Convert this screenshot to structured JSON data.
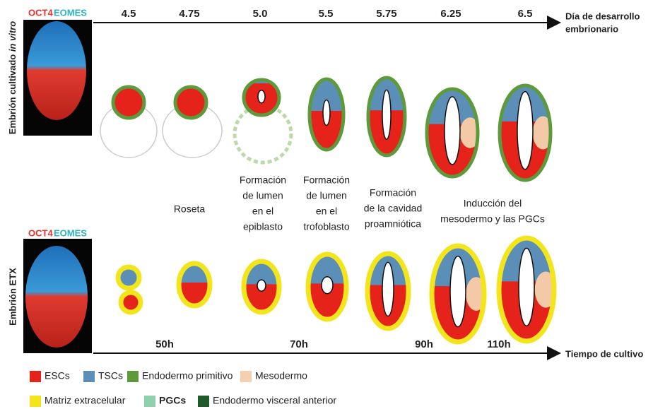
{
  "top_panel": {
    "stain_red": "OCT4",
    "stain_cyan": "EOMES",
    "side_label": "Embrión cultivado",
    "side_label_italic": "in vitro"
  },
  "bottom_panel": {
    "stain_red": "OCT4",
    "stain_cyan": "EOMES",
    "side_label": "Embrión ETX"
  },
  "top_axis": {
    "ticks": [
      "4.5",
      "4.75",
      "5.0",
      "5.5",
      "5.75",
      "6.25",
      "6.5"
    ],
    "title": [
      "Día de desarrollo",
      "embrionario"
    ]
  },
  "stages": [
    [
      "Roseta"
    ],
    [
      "Formación",
      "de lumen",
      "en el",
      "epiblasto"
    ],
    [
      "Formación",
      "de lumen",
      "en el",
      "trofoblasto"
    ],
    [
      "Formación",
      "de la cavidad",
      "proamniótica"
    ],
    [
      "Inducción del",
      "mesodermo y las PGCs"
    ]
  ],
  "bottom_axis": {
    "ticks": [
      "50h",
      "70h",
      "90h",
      "110h"
    ],
    "title": "Tiempo de cultivo"
  },
  "legend": [
    "ESCs",
    "TSCs",
    "Endodermo primitivo",
    "Mesodermo",
    "Matriz extracelular",
    "PGCs",
    "Endodermo visceral anterior"
  ]
}
